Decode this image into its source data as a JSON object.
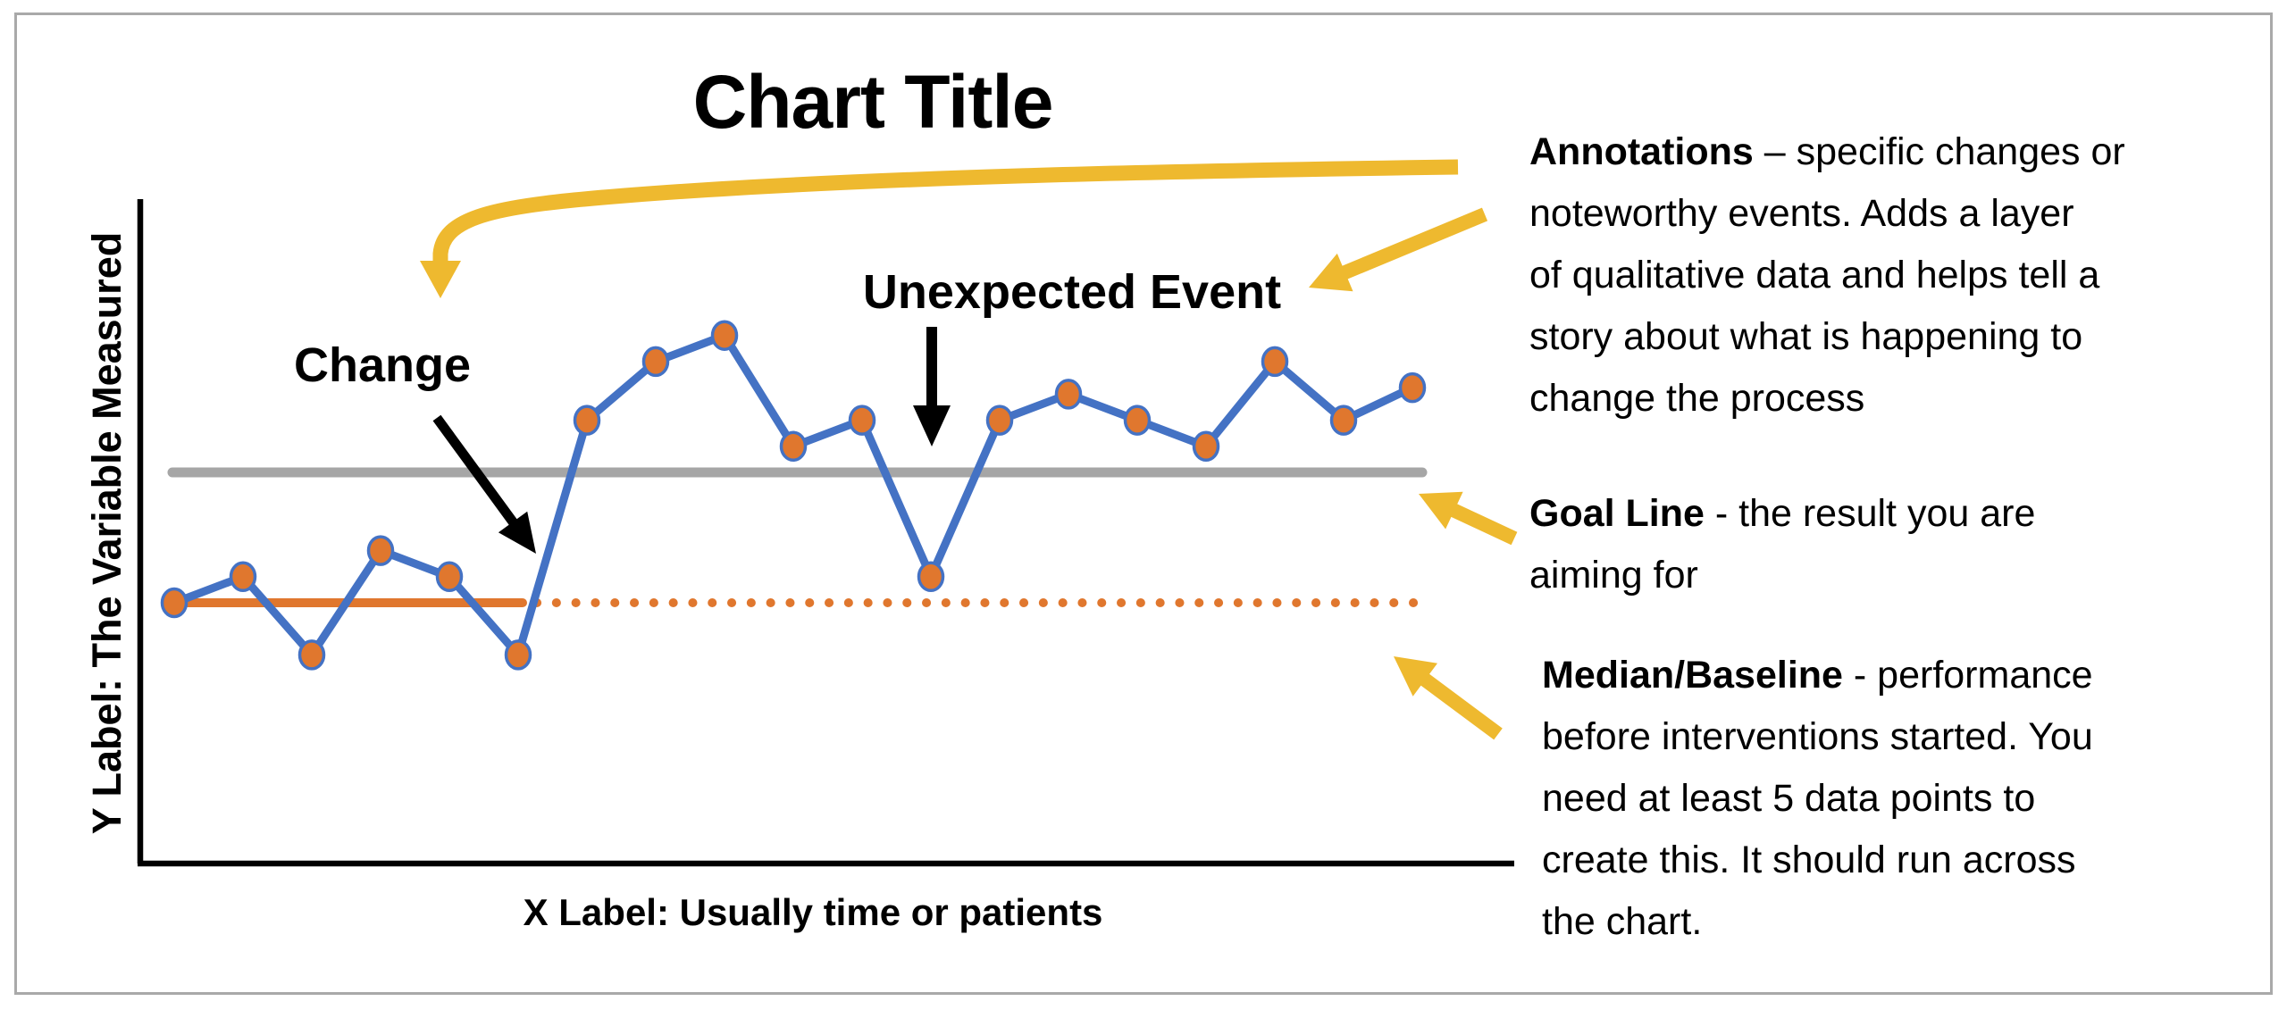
{
  "figure": {
    "background": "#ffffff",
    "border_color": "#a9a9a9"
  },
  "chart_data": {
    "type": "line",
    "title": "Chart Title",
    "xlabel": "X Label: Usually time or patients",
    "ylabel": "Y Label: The Variable Measured",
    "x": [
      1,
      2,
      3,
      4,
      5,
      6,
      7,
      8,
      9,
      10,
      11,
      12,
      13,
      14,
      15,
      16,
      17,
      18,
      19
    ],
    "series": [
      {
        "name": "measured-variable",
        "values": [
          40,
          44,
          32,
          48,
          44,
          32,
          68,
          77,
          81,
          64,
          68,
          44,
          68,
          72,
          68,
          64,
          77,
          68,
          73
        ]
      }
    ],
    "reference_lines": {
      "goal": 60,
      "median_baseline": 40
    },
    "median_solid_through_point": 6,
    "ylim": [
      0,
      100
    ],
    "grid": false,
    "legend_position": "none",
    "annotations": [
      {
        "label": "Change",
        "points_to_x": 6
      },
      {
        "label": "Unexpected Event",
        "points_to_x": 12
      }
    ]
  },
  "legend_notes": {
    "blocks": [
      {
        "lead": "Annotations",
        "first_line_rest": " – specific changes or",
        "lines": [
          "noteworthy events. Adds a layer",
          "of qualitative data and helps tell a",
          "story about what is happening to",
          "change the process"
        ]
      },
      {
        "lead": "Goal Line",
        "first_line_rest": " - the result you are",
        "lines": [
          "aiming for"
        ]
      },
      {
        "lead": "Median/Baseline",
        "first_line_rest": " - performance",
        "lines": [
          "before interventions started. You",
          "need at least 5 data points to",
          "create this. It should run across",
          "the chart."
        ]
      }
    ]
  },
  "shapes": {
    "curved_callout_arrow": "yellow curved arrow from notes to chart interior",
    "annotations_callout_arrow": "yellow straight arrow toward chart annotations",
    "goal_callout_arrow": "yellow straight arrow toward goal line",
    "median_callout_arrow": "yellow straight arrow toward median/baseline line",
    "change_arrow": "black arrow from Change label to process shift",
    "unexpected_event_arrow": "black arrow from Unexpected Event label to dip point"
  },
  "colors": {
    "series_line": "#4472c4",
    "marker_fill": "#e0772e",
    "marker_stroke": "#4472c4",
    "goal_line": "#a6a6a6",
    "median_line": "#e0772e",
    "axis": "#000000",
    "annotation_arrow": "#000000",
    "callout_arrow": "#eeb92f",
    "text": "#000000"
  }
}
